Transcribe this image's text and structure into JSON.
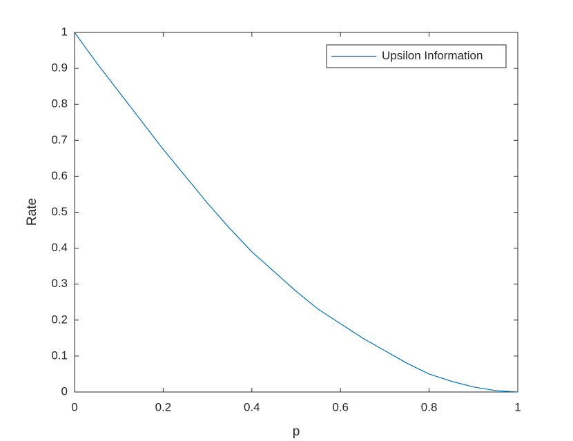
{
  "chart_data": {
    "type": "line",
    "xlabel": "p",
    "ylabel": "Rate",
    "x": [
      0,
      0.05,
      0.1,
      0.15,
      0.2,
      0.25,
      0.3,
      0.35,
      0.4,
      0.45,
      0.5,
      0.55,
      0.6,
      0.65,
      0.7,
      0.75,
      0.8,
      0.85,
      0.9,
      0.95,
      1
    ],
    "series": [
      {
        "name": "Upsilon Information",
        "color": "#0072bd",
        "values": [
          1,
          0.915,
          0.835,
          0.755,
          0.675,
          0.6,
          0.525,
          0.455,
          0.39,
          0.335,
          0.28,
          0.23,
          0.19,
          0.15,
          0.115,
          0.08,
          0.05,
          0.03,
          0.014,
          0.004,
          0
        ]
      }
    ],
    "xlim": [
      0,
      1
    ],
    "ylim": [
      0,
      1
    ],
    "xticks": [
      0,
      0.2,
      0.4,
      0.6,
      0.8,
      1
    ],
    "yticks": [
      0,
      0.1,
      0.2,
      0.3,
      0.4,
      0.5,
      0.6,
      0.7,
      0.8,
      0.9,
      1
    ],
    "legend": "northeast",
    "grid": false
  }
}
